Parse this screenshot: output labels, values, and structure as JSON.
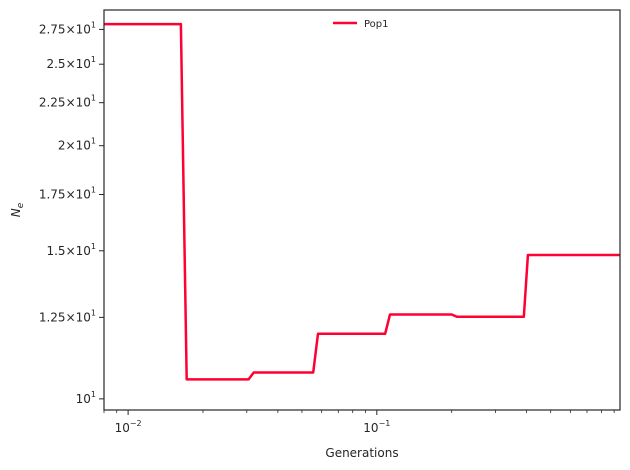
{
  "chart_data": {
    "type": "line",
    "xlabel": "Generations",
    "ylabel": "N",
    "ylabel_subscript": "e",
    "xscale": "log",
    "yscale": "log",
    "xlim": [
      0.008,
      0.95
    ],
    "ylim": [
      9.7,
      29.0
    ],
    "grid": false,
    "legend_position": "top-center",
    "x_ticks": [
      {
        "value": 0.01,
        "base": "10",
        "exp": "−2"
      },
      {
        "value": 0.1,
        "base": "10",
        "exp": "−1"
      }
    ],
    "y_ticks": [
      {
        "value": 10,
        "mant": "",
        "base": "10",
        "exp": "1"
      },
      {
        "value": 12.5,
        "mant": "1.25×",
        "base": "10",
        "exp": "1"
      },
      {
        "value": 15,
        "mant": "1.5×",
        "base": "10",
        "exp": "1"
      },
      {
        "value": 17.5,
        "mant": "1.75×",
        "base": "10",
        "exp": "1"
      },
      {
        "value": 20,
        "mant": "2×",
        "base": "10",
        "exp": "1"
      },
      {
        "value": 22.5,
        "mant": "2.25×",
        "base": "10",
        "exp": "1"
      },
      {
        "value": 25,
        "mant": "2.5×",
        "base": "10",
        "exp": "1"
      },
      {
        "value": 27.5,
        "mant": "2.75×",
        "base": "10",
        "exp": "1"
      }
    ],
    "series": [
      {
        "name": "Pop1",
        "color": "#ff0033",
        "x": [
          0.008,
          0.0163,
          0.0172,
          0.0305,
          0.032,
          0.0555,
          0.058,
          0.108,
          0.113,
          0.2,
          0.21,
          0.39,
          0.405,
          0.95
        ],
        "y": [
          27.9,
          27.9,
          10.55,
          10.55,
          10.75,
          10.75,
          11.95,
          11.95,
          12.6,
          12.6,
          12.52,
          12.52,
          14.83,
          14.83
        ]
      }
    ]
  }
}
